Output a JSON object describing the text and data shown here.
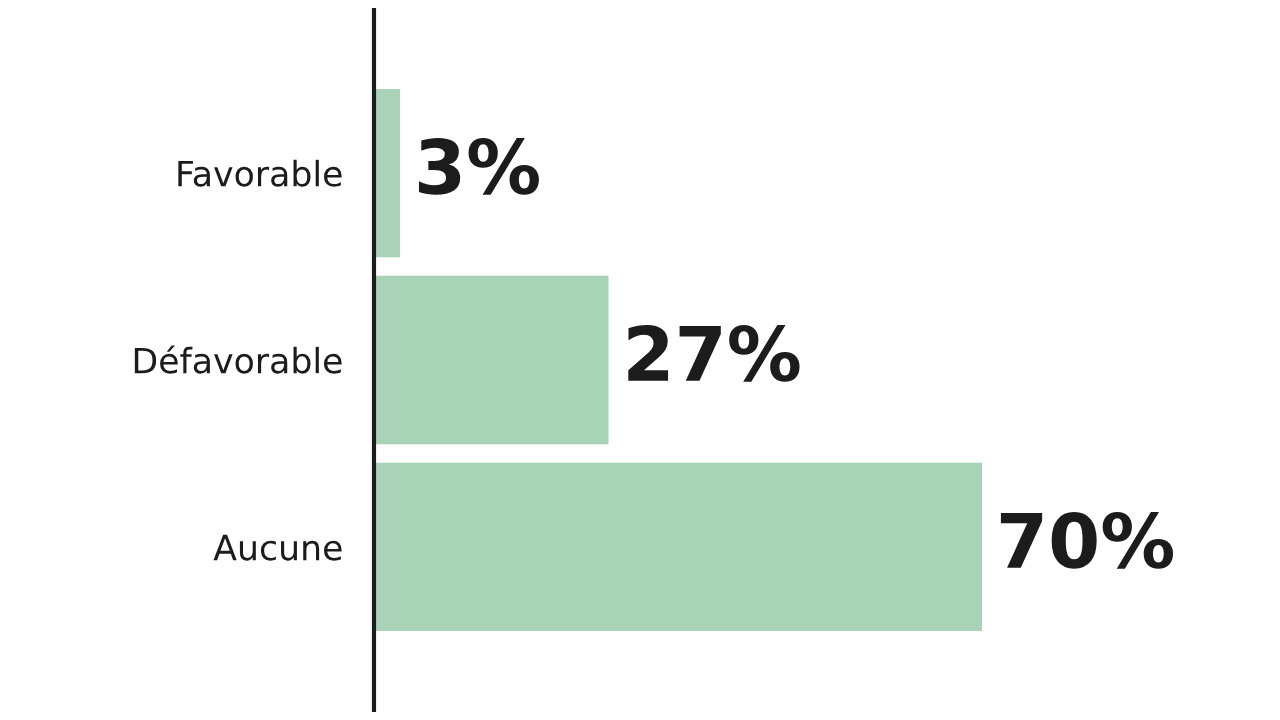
{
  "chart_data": {
    "type": "bar",
    "orientation": "horizontal",
    "categories": [
      "Favorable",
      "Défavorable",
      "Aucune"
    ],
    "values": [
      3,
      27,
      70
    ],
    "color": "#a8d3b7",
    "data_labels": true,
    "value_labels": [
      "3%",
      "27%",
      "70%"
    ],
    "tick_labels": "y",
    "grid": false,
    "legend": false
  }
}
